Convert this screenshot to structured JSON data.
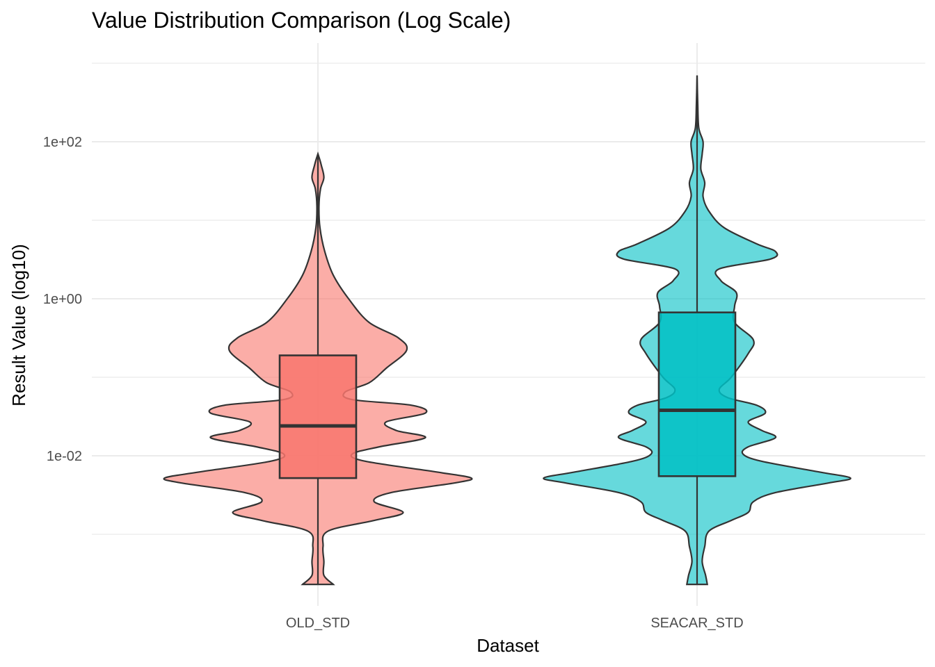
{
  "chart_data": {
    "type": "violin",
    "title": "Value Distribution Comparison (Log Scale)",
    "xlabel": "Dataset",
    "ylabel": "Result Value (log10)",
    "y_scale": "log10",
    "ylim": [
      0.0002,
      1500
    ],
    "y_ticks": [
      {
        "value": 0.01,
        "label": "1e-02"
      },
      {
        "value": 1,
        "label": "1e+00"
      },
      {
        "value": 100,
        "label": "1e+02"
      }
    ],
    "y_minor_ticks": [
      0.001,
      0.1,
      10,
      1000
    ],
    "grid": true,
    "legend": "none",
    "categories": [
      "OLD_STD",
      "SEACAR_STD"
    ],
    "series": [
      {
        "category": "OLD_STD",
        "color": "#F8766D",
        "violin_alpha": 0.6,
        "min": 0.00023,
        "max": 70,
        "box": {
          "q1": 0.0052,
          "median": 0.024,
          "q3": 0.19,
          "whisker_low": 0.00023,
          "whisker_high": 70
        },
        "density_profile": [
          [
            0.00023,
            0.09
          ],
          [
            0.0003,
            0.035
          ],
          [
            0.00045,
            0.035
          ],
          [
            0.0007,
            0.03
          ],
          [
            0.0011,
            0.06
          ],
          [
            0.0015,
            0.33
          ],
          [
            0.0019,
            0.5
          ],
          [
            0.0026,
            0.33
          ],
          [
            0.0034,
            0.43
          ],
          [
            0.0045,
            0.8
          ],
          [
            0.0052,
            0.9
          ],
          [
            0.0062,
            0.7
          ],
          [
            0.0085,
            0.28
          ],
          [
            0.0105,
            0.2
          ],
          [
            0.013,
            0.36
          ],
          [
            0.017,
            0.63
          ],
          [
            0.021,
            0.46
          ],
          [
            0.027,
            0.4
          ],
          [
            0.035,
            0.63
          ],
          [
            0.044,
            0.55
          ],
          [
            0.052,
            0.2
          ],
          [
            0.065,
            0.16
          ],
          [
            0.085,
            0.3
          ],
          [
            0.13,
            0.4
          ],
          [
            0.22,
            0.52
          ],
          [
            0.32,
            0.47
          ],
          [
            0.5,
            0.3
          ],
          [
            1,
            0.18
          ],
          [
            2,
            0.09
          ],
          [
            4,
            0.04
          ],
          [
            8,
            0.012
          ],
          [
            15,
            0.006
          ],
          [
            25,
            0.015
          ],
          [
            35,
            0.035
          ],
          [
            50,
            0.02
          ],
          [
            60,
            0.01
          ],
          [
            70,
            0.0
          ]
        ]
      },
      {
        "category": "SEACAR_STD",
        "color": "#00BFC4",
        "violin_alpha": 0.6,
        "min": 0.00023,
        "max": 700,
        "box": {
          "q1": 0.0055,
          "median": 0.038,
          "q3": 0.67,
          "whisker_low": 0.00023,
          "whisker_high": 700
        },
        "density_profile": [
          [
            0.00023,
            0.06
          ],
          [
            0.0003,
            0.05
          ],
          [
            0.00045,
            0.03
          ],
          [
            0.0007,
            0.045
          ],
          [
            0.0011,
            0.07
          ],
          [
            0.0015,
            0.2
          ],
          [
            0.0019,
            0.3
          ],
          [
            0.0026,
            0.33
          ],
          [
            0.0034,
            0.46
          ],
          [
            0.0045,
            0.77
          ],
          [
            0.0052,
            0.9
          ],
          [
            0.0062,
            0.72
          ],
          [
            0.0085,
            0.38
          ],
          [
            0.0105,
            0.27
          ],
          [
            0.013,
            0.3
          ],
          [
            0.017,
            0.46
          ],
          [
            0.021,
            0.38
          ],
          [
            0.027,
            0.3
          ],
          [
            0.035,
            0.4
          ],
          [
            0.044,
            0.35
          ],
          [
            0.055,
            0.18
          ],
          [
            0.07,
            0.13
          ],
          [
            0.1,
            0.2
          ],
          [
            0.2,
            0.3
          ],
          [
            0.3,
            0.33
          ],
          [
            0.5,
            0.22
          ],
          [
            0.8,
            0.22
          ],
          [
            1.2,
            0.23
          ],
          [
            1.7,
            0.14
          ],
          [
            2.4,
            0.13
          ],
          [
            3.2,
            0.43
          ],
          [
            4,
            0.46
          ],
          [
            5,
            0.35
          ],
          [
            8,
            0.16
          ],
          [
            13,
            0.07
          ],
          [
            20,
            0.035
          ],
          [
            30,
            0.045
          ],
          [
            45,
            0.022
          ],
          [
            70,
            0.03
          ],
          [
            100,
            0.035
          ],
          [
            150,
            0.01
          ],
          [
            300,
            0.004
          ],
          [
            700,
            0.0
          ]
        ]
      }
    ]
  }
}
